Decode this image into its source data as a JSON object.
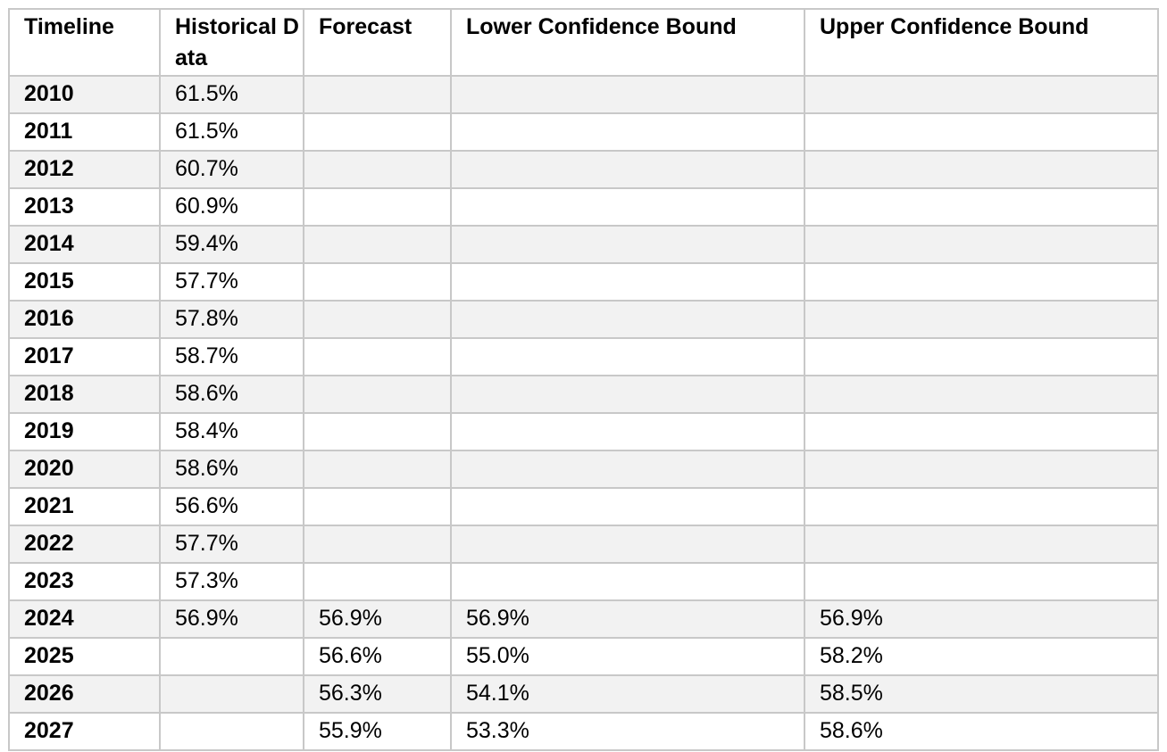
{
  "table": {
    "headers": [
      "Timeline",
      "Historical Data",
      "Forecast",
      "Lower Confidence Bound",
      "Upper Confidence Bound"
    ],
    "rows": [
      [
        "2010",
        "61.5%",
        "",
        "",
        ""
      ],
      [
        "2011",
        "61.5%",
        "",
        "",
        ""
      ],
      [
        "2012",
        "60.7%",
        "",
        "",
        ""
      ],
      [
        "2013",
        "60.9%",
        "",
        "",
        ""
      ],
      [
        "2014",
        "59.4%",
        "",
        "",
        ""
      ],
      [
        "2015",
        "57.7%",
        "",
        "",
        ""
      ],
      [
        "2016",
        "57.8%",
        "",
        "",
        ""
      ],
      [
        "2017",
        "58.7%",
        "",
        "",
        ""
      ],
      [
        "2018",
        "58.6%",
        "",
        "",
        ""
      ],
      [
        "2019",
        "58.4%",
        "",
        "",
        ""
      ],
      [
        "2020",
        "58.6%",
        "",
        "",
        ""
      ],
      [
        "2021",
        "56.6%",
        "",
        "",
        ""
      ],
      [
        "2022",
        "57.7%",
        "",
        "",
        ""
      ],
      [
        "2023",
        "57.3%",
        "",
        "",
        ""
      ],
      [
        "2024",
        "56.9%",
        "56.9%",
        "56.9%",
        "56.9%"
      ],
      [
        "2025",
        "",
        "56.6%",
        "55.0%",
        "58.2%"
      ],
      [
        "2026",
        "",
        "56.3%",
        "54.1%",
        "58.5%"
      ],
      [
        "2027",
        "",
        "55.9%",
        "53.3%",
        "58.6%"
      ]
    ]
  }
}
